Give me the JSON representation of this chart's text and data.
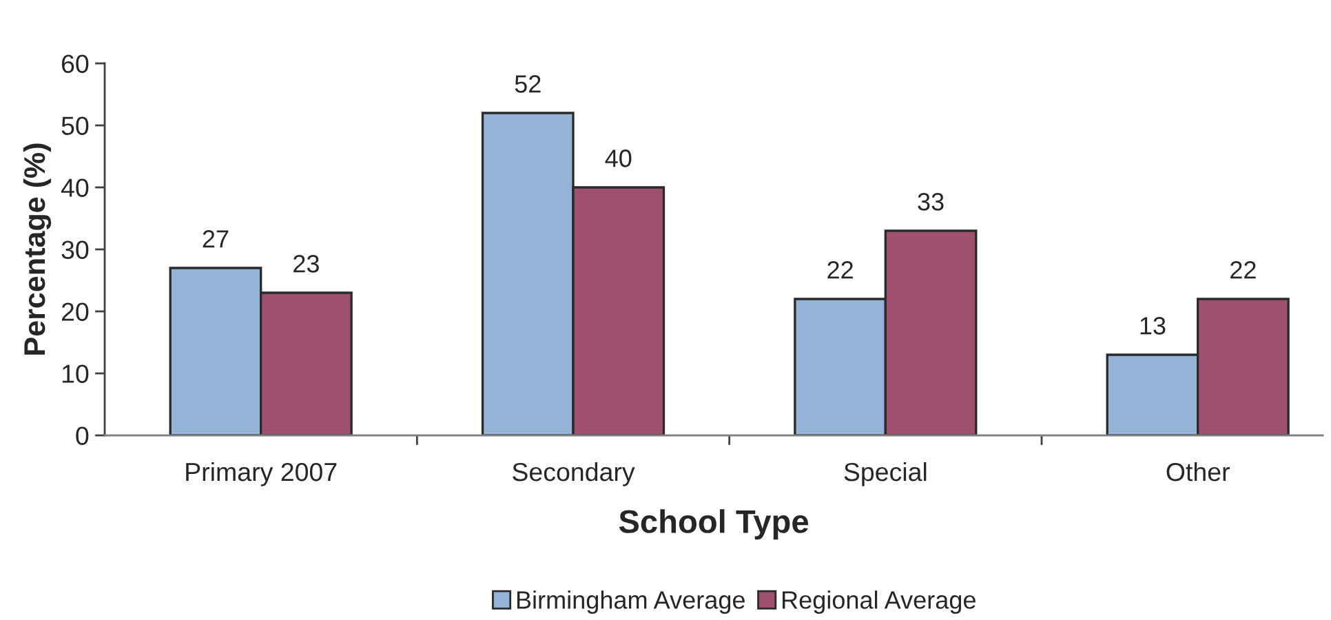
{
  "chart_data": {
    "type": "bar",
    "xlabel": "School Type",
    "ylabel": "Percentage (%)",
    "categories": [
      "Primary 2007",
      "Secondary",
      "Special",
      "Other"
    ],
    "series": [
      {
        "name": "Birmingham Average",
        "color": "#95b3d7",
        "values": [
          27,
          52,
          22,
          13
        ]
      },
      {
        "name": "Regional Average",
        "color": "#a0506f",
        "values": [
          23,
          40,
          33,
          22
        ]
      }
    ],
    "ylim": [
      0,
      60
    ],
    "yticks": [
      0,
      10,
      20,
      30,
      40,
      50,
      60
    ],
    "data_labels": true,
    "legend": "bottom",
    "grid": false
  }
}
